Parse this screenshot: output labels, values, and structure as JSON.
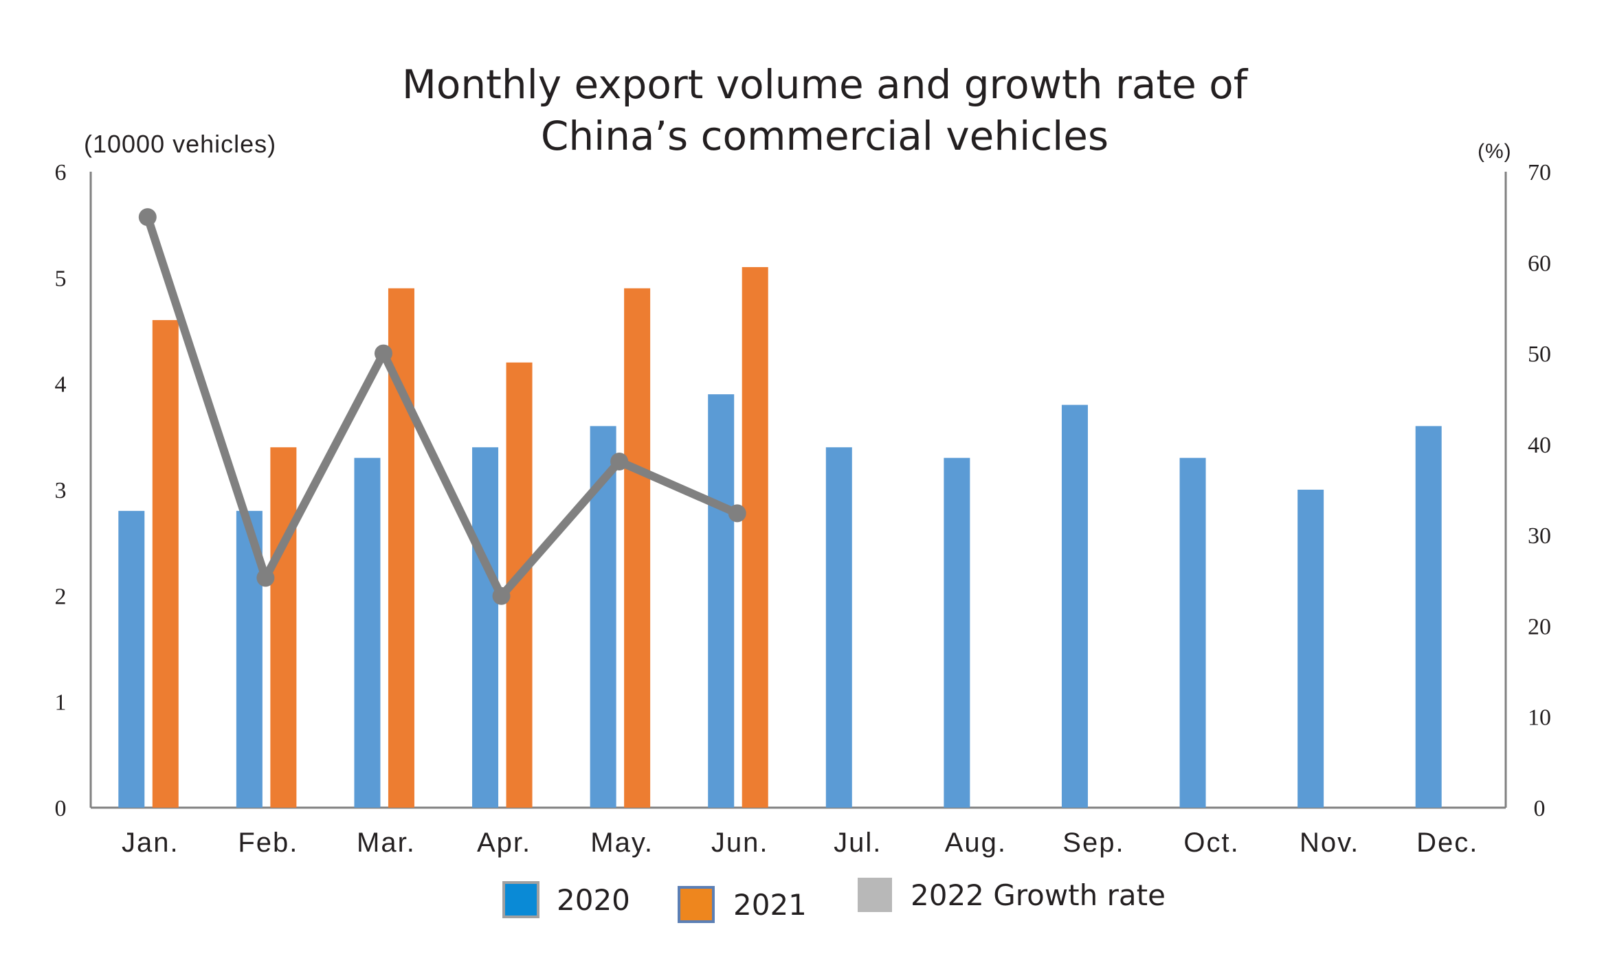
{
  "chart_data": {
    "type": "bar",
    "title_line1": "Monthly export volume and growth rate of",
    "title_line2": "China’s commercial vehicles",
    "ylabel": "(10000 vehicles)",
    "y2label": "(%)",
    "ylim": [
      0,
      6
    ],
    "y2lim": [
      0,
      70
    ],
    "yticks": [
      "0",
      "1",
      "2",
      "3",
      "4",
      "5",
      "6"
    ],
    "y2ticks": [
      "0",
      "10",
      "20",
      "30",
      "40",
      "50",
      "60",
      "70"
    ],
    "categories": [
      "Jan.",
      "Feb.",
      "Mar.",
      "Apr.",
      "May.",
      "Jun.",
      "Jul.",
      "Aug.",
      "Sep.",
      "Oct.",
      "Nov.",
      "Dec."
    ],
    "series": [
      {
        "name": "2020",
        "type": "bar",
        "axis": "left",
        "color": "#5b9bd5",
        "values": [
          2.8,
          2.8,
          3.3,
          3.4,
          3.6,
          3.9,
          3.4,
          3.3,
          3.8,
          3.3,
          3.0,
          3.6
        ]
      },
      {
        "name": "2021",
        "type": "bar",
        "axis": "left",
        "color": "#ed7d31",
        "values": [
          4.6,
          3.4,
          4.9,
          4.2,
          4.9,
          5.1,
          null,
          null,
          null,
          null,
          null,
          null
        ]
      },
      {
        "name": "2022 Growth rate",
        "type": "line",
        "axis": "right",
        "color": "#808080",
        "values": [
          65,
          25.3,
          50,
          23.3,
          38.1,
          32.4,
          null,
          null,
          null,
          null,
          null,
          null
        ]
      }
    ],
    "legend": {
      "placement": "bottom",
      "items": [
        {
          "label": "2020",
          "color": "#0a8ad6"
        },
        {
          "label": "2021",
          "color": "#ee861e"
        },
        {
          "label": "2022 Growth rate",
          "color": "#b8b8b8"
        }
      ]
    },
    "grid": false
  }
}
